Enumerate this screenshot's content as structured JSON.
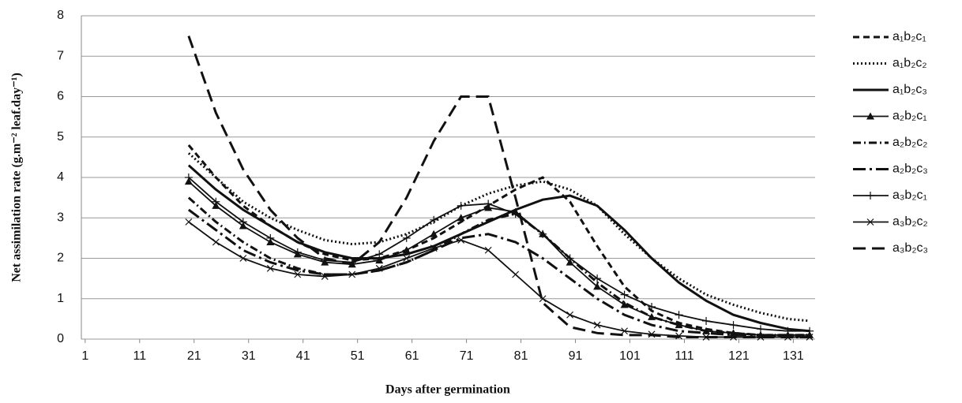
{
  "chart_data": {
    "type": "line",
    "xlabel": "Days after germination",
    "ylabel": "Net assimilation rate (g.m⁻² leaf.day⁻¹)",
    "xlim": [
      0.3,
      135
    ],
    "xticks": [
      1,
      11,
      21,
      31,
      41,
      51,
      61,
      71,
      81,
      91,
      101,
      111,
      121,
      131
    ],
    "ylim": [
      0,
      8
    ],
    "yticks": [
      0,
      1,
      2,
      3,
      4,
      5,
      6,
      7,
      8
    ],
    "grid": true,
    "legend": "right",
    "x": [
      20,
      25,
      30,
      35,
      40,
      45,
      50,
      55,
      60,
      65,
      70,
      75,
      80,
      85,
      90,
      95,
      100,
      105,
      110,
      115,
      120,
      125,
      130,
      134
    ],
    "series": [
      {
        "name": "a₁b₂c₁",
        "color": "#111",
        "dash": "8 5",
        "marker": "none",
        "values": [
          4.8,
          4.0,
          3.3,
          2.8,
          2.4,
          2.1,
          1.95,
          2.0,
          2.2,
          2.5,
          2.9,
          3.3,
          3.7,
          4.0,
          3.4,
          2.3,
          1.3,
          0.7,
          0.4,
          0.25,
          0.15,
          0.1,
          0.1,
          0.1
        ]
      },
      {
        "name": "a₁b₂c₂",
        "color": "#111",
        "dash": "2 3",
        "marker": "none",
        "values": [
          4.6,
          4.0,
          3.4,
          3.0,
          2.7,
          2.45,
          2.35,
          2.4,
          2.6,
          2.9,
          3.3,
          3.6,
          3.8,
          3.9,
          3.7,
          3.3,
          2.6,
          2.0,
          1.5,
          1.1,
          0.85,
          0.65,
          0.5,
          0.45
        ]
      },
      {
        "name": "a₁b₂c₃",
        "color": "#111",
        "dash": "none",
        "marker": "none",
        "values": [
          4.3,
          3.7,
          3.2,
          2.8,
          2.4,
          2.15,
          2.0,
          2.0,
          2.1,
          2.3,
          2.6,
          2.9,
          3.2,
          3.45,
          3.55,
          3.3,
          2.7,
          2.0,
          1.4,
          0.95,
          0.6,
          0.4,
          0.25,
          0.2
        ]
      },
      {
        "name": "a₂b₂c₁",
        "color": "#111",
        "dash": "none",
        "marker": "triangle",
        "values": [
          3.9,
          3.3,
          2.8,
          2.4,
          2.1,
          1.9,
          1.85,
          1.95,
          2.2,
          2.6,
          3.0,
          3.25,
          3.15,
          2.6,
          1.9,
          1.3,
          0.85,
          0.55,
          0.35,
          0.2,
          0.15,
          0.1,
          0.1,
          0.1
        ]
      },
      {
        "name": "a₂b₂c₂",
        "color": "#111",
        "dash": "10 4 2 4",
        "marker": "none",
        "values": [
          3.5,
          2.9,
          2.4,
          2.0,
          1.75,
          1.6,
          1.6,
          1.7,
          1.9,
          2.2,
          2.6,
          2.95,
          3.1,
          2.6,
          2.0,
          1.4,
          0.9,
          0.55,
          0.35,
          0.2,
          0.15,
          0.1,
          0.1,
          0.1
        ]
      },
      {
        "name": "a₂b₂c₃",
        "color": "#111",
        "dash": "16 5 3 5",
        "marker": "none",
        "values": [
          3.2,
          2.7,
          2.2,
          1.9,
          1.7,
          1.6,
          1.6,
          1.7,
          1.9,
          2.2,
          2.5,
          2.6,
          2.4,
          2.0,
          1.5,
          1.0,
          0.6,
          0.35,
          0.2,
          0.15,
          0.1,
          0.1,
          0.05,
          0.05
        ]
      },
      {
        "name": "a₃b₂c₁",
        "color": "#111",
        "dash": "none",
        "marker": "plus",
        "values": [
          4.0,
          3.4,
          2.9,
          2.5,
          2.15,
          1.95,
          1.9,
          2.1,
          2.5,
          2.95,
          3.3,
          3.35,
          3.1,
          2.6,
          2.0,
          1.5,
          1.1,
          0.8,
          0.6,
          0.45,
          0.35,
          0.25,
          0.2,
          0.2
        ]
      },
      {
        "name": "a₃b₂c₂",
        "color": "#111",
        "dash": "none",
        "marker": "x",
        "values": [
          2.9,
          2.4,
          2.0,
          1.75,
          1.6,
          1.55,
          1.6,
          1.75,
          2.0,
          2.25,
          2.45,
          2.2,
          1.6,
          1.0,
          0.6,
          0.35,
          0.2,
          0.12,
          0.08,
          0.05,
          0.05,
          0.05,
          0.05,
          0.05
        ]
      },
      {
        "name": "a₃b₂c₃",
        "color": "#111",
        "dash": "16 8",
        "marker": "none",
        "values": [
          7.5,
          5.6,
          4.2,
          3.2,
          2.5,
          2.0,
          1.85,
          2.4,
          3.5,
          4.9,
          6.0,
          6.0,
          3.5,
          0.9,
          0.3,
          0.15,
          0.1,
          0.1,
          0.05,
          0.05,
          0.05,
          0.05,
          0.05,
          0.05
        ]
      }
    ]
  }
}
